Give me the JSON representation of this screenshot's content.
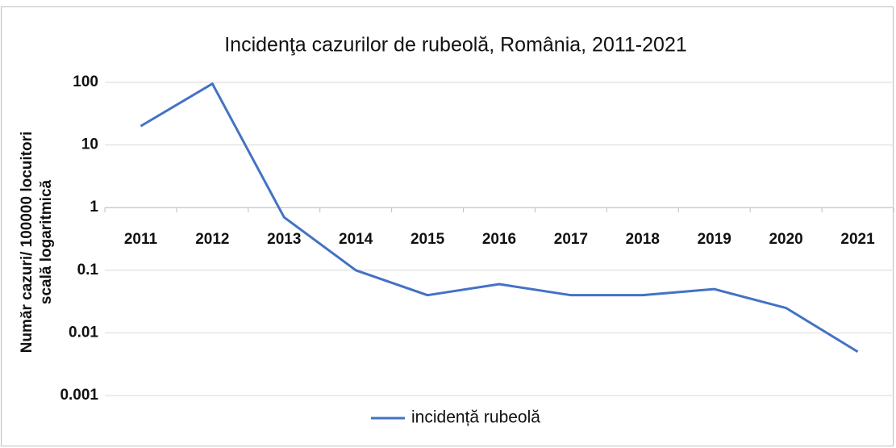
{
  "chart_data": {
    "type": "line",
    "title": "Incidenţa cazurilor de rubeolă, România, 2011-2021",
    "ylabel": [
      "Număr cazuri/ 100000 locuitori",
      "scală logaritmică"
    ],
    "categories": [
      "2011",
      "2012",
      "2013",
      "2014",
      "2015",
      "2016",
      "2017",
      "2018",
      "2019",
      "2020",
      "2021"
    ],
    "series": [
      {
        "name": "incidență rubeolă",
        "color": "#4472c4",
        "values": [
          20,
          95,
          0.7,
          0.1,
          0.04,
          0.06,
          0.04,
          0.04,
          0.05,
          0.025,
          0.005
        ]
      }
    ],
    "ylim": [
      0.001,
      100
    ],
    "yticks": [
      0.001,
      0.01,
      0.1,
      1,
      10,
      100
    ],
    "log_y": true,
    "grid": true,
    "x_axis_at": 1,
    "legend": "bottom"
  }
}
